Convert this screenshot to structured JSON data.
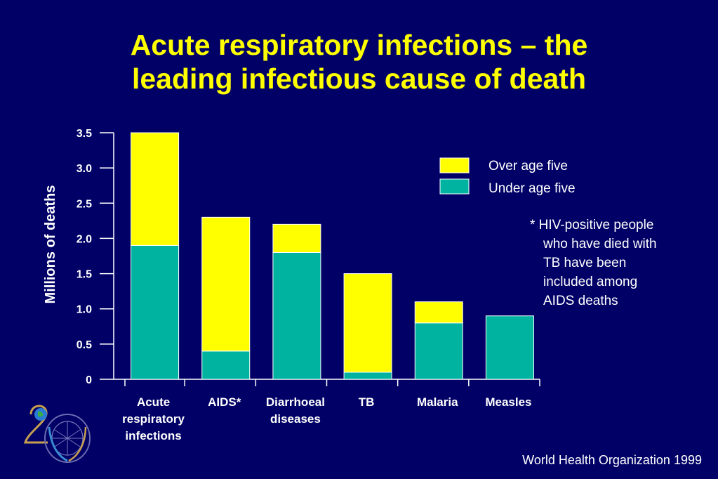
{
  "title": {
    "line1": "Acute respiratory infections – the",
    "line2": "leading infectious cause of death"
  },
  "colors": {
    "background": "#000066",
    "title": "#ffff00",
    "over_age_five": "#ffff00",
    "under_age_five": "#00b3a0",
    "text": "#ffffff"
  },
  "chart_data": {
    "type": "bar",
    "stacked": true,
    "title": "",
    "xlabel": "",
    "ylabel": "Millions of deaths",
    "ylim": [
      0,
      3.5
    ],
    "yticks": [
      "0",
      "0.5",
      "1.0",
      "1.5",
      "2.0",
      "2.5",
      "3.0",
      "3.5"
    ],
    "categories": [
      [
        "Acute",
        "respiratory",
        "infections"
      ],
      [
        "AIDS*"
      ],
      [
        "Diarrhoeal",
        "diseases"
      ],
      [
        "TB"
      ],
      [
        "Malaria"
      ],
      [
        "Measles"
      ]
    ],
    "series": [
      {
        "name": "Under age five",
        "color": "#00b3a0",
        "values": [
          1.9,
          0.4,
          1.8,
          0.1,
          0.8,
          0.9
        ]
      },
      {
        "name": "Over age five",
        "color": "#ffff00",
        "values": [
          1.6,
          1.9,
          0.4,
          1.4,
          0.3,
          0
        ]
      }
    ],
    "legend_position": "top-right",
    "grid": false
  },
  "legend": {
    "over_label": "Over age five",
    "under_label": "Under age five"
  },
  "footnote": {
    "lines": [
      "* HIV-positive people",
      "who have died with",
      "TB have been",
      "included among",
      "AIDS deaths"
    ]
  },
  "source": "World Health Organization 1999"
}
